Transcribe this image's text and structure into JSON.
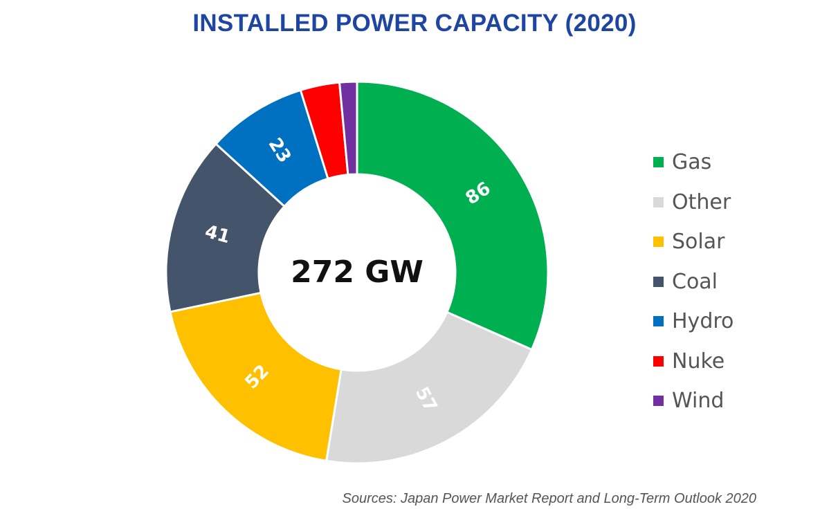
{
  "chart_data": {
    "type": "pie",
    "title": "INSTALLED POWER CAPACITY (2020)",
    "center_label": "272 GW",
    "legend_position": "right",
    "slices": [
      {
        "label": "Gas",
        "value": 86,
        "color": "#00b050",
        "value_label": "86"
      },
      {
        "label": "Other",
        "value": 57,
        "color": "#d9d9d9",
        "value_label": "57"
      },
      {
        "label": "Solar",
        "value": 52,
        "color": "#ffc000",
        "value_label": "52"
      },
      {
        "label": "Coal",
        "value": 41,
        "color": "#44546a",
        "value_label": "41"
      },
      {
        "label": "Hydro",
        "value": 23,
        "color": "#0070c0",
        "value_label": "23"
      },
      {
        "label": "Nuke",
        "value": 9,
        "color": "#ff0000",
        "value_label": ""
      },
      {
        "label": "Wind",
        "value": 4,
        "color": "#7030a0",
        "value_label": ""
      }
    ],
    "source": "Sources: Japan Power Market Report and Long-Term Outlook 2020"
  }
}
